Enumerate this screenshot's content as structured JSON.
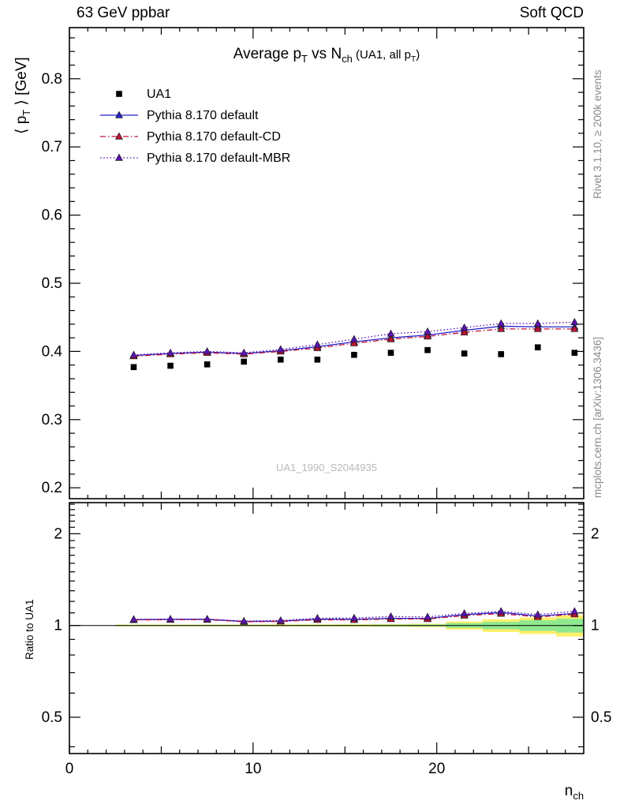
{
  "header": {
    "left": "63 GeV ppbar",
    "right": "Soft QCD"
  },
  "title": {
    "main_1": "Average p",
    "sub_1": "T",
    "main_2": " vs N",
    "sub_2": "ch",
    "paren_1": " (UA1, all p",
    "paren_sub": "T",
    "paren_2": ")"
  },
  "side_notes": {
    "right_top": "Rivet 3.1.10, ≥ 200k events",
    "right_bottom": "mcplots.cern.ch [arXiv:1306.3436]"
  },
  "watermark": "UA1_1990_S2044935",
  "axes": {
    "y_label": {
      "p1": "⟨ p",
      "sub": "T",
      "p2": " ⟩ [GeV]"
    },
    "x_label": {
      "p1": "n",
      "sub": "ch"
    },
    "ratio_label": "Ratio to UA1",
    "y_ticks": [
      0.2,
      0.3,
      0.4,
      0.5,
      0.6,
      0.7,
      0.8
    ],
    "x_ticks": [
      0,
      10,
      20
    ],
    "ratio_ticks": [
      0.5,
      1,
      2
    ],
    "ratio_minor_ticks": [
      0.4,
      0.6,
      0.7,
      0.8,
      0.9,
      1.1,
      1.2,
      1.3,
      1.4,
      1.5,
      1.6,
      1.7,
      1.8,
      1.9,
      2.1,
      2.2,
      2.3,
      2.4,
      2.5
    ],
    "x_range": [
      0,
      28
    ],
    "y_range": [
      0.184,
      0.875
    ],
    "ratio_range": [
      0.38,
      2.53
    ],
    "ratio_scale": "log"
  },
  "chart_data": {
    "type": "line",
    "title": "Average pT vs Nch (UA1, all pT)",
    "xlabel": "n_ch",
    "ylabel": "<pT> [GeV]",
    "x": [
      3.5,
      5.5,
      7.5,
      9.5,
      11.5,
      13.5,
      15.5,
      17.5,
      19.5,
      21.5,
      23.5,
      25.5,
      27.5
    ],
    "series": [
      {
        "name": "UA1",
        "role": "data",
        "marker": "square",
        "color": "#000000",
        "line": "none",
        "values": [
          0.377,
          0.379,
          0.381,
          0.385,
          0.388,
          0.388,
          0.395,
          0.398,
          0.402,
          0.397,
          0.396,
          0.406,
          0.398
        ]
      },
      {
        "name": "Pythia 8.170 default",
        "role": "mc",
        "marker": "triangle",
        "color": "#2222cc",
        "line": "solid",
        "values": [
          0.394,
          0.397,
          0.399,
          0.397,
          0.401,
          0.407,
          0.414,
          0.42,
          0.424,
          0.431,
          0.437,
          0.436,
          0.436
        ]
      },
      {
        "name": "Pythia 8.170 default-CD",
        "role": "mc",
        "marker": "triangle",
        "color": "#c01236",
        "line": "dashdot",
        "values": [
          0.393,
          0.396,
          0.398,
          0.396,
          0.4,
          0.405,
          0.412,
          0.418,
          0.422,
          0.428,
          0.433,
          0.433,
          0.433
        ]
      },
      {
        "name": "Pythia 8.170 default-MBR",
        "role": "mc",
        "marker": "triangle",
        "color": "#5a14b4",
        "line": "dotted",
        "values": [
          0.395,
          0.398,
          0.4,
          0.398,
          0.403,
          0.41,
          0.418,
          0.426,
          0.429,
          0.435,
          0.441,
          0.441,
          0.443
        ]
      }
    ],
    "ratio_reference": 1,
    "uncertainty_band": {
      "colors": {
        "outer": "#ffef6b",
        "inner": "#8fe88f"
      },
      "x": [
        3.5,
        5.5,
        7.5,
        9.5,
        11.5,
        13.5,
        15.5,
        17.5,
        19.5,
        21.5,
        23.5,
        25.5,
        27.5
      ],
      "outer_half": [
        0.007,
        0.007,
        0.007,
        0.007,
        0.008,
        0.008,
        0.009,
        0.01,
        0.012,
        0.03,
        0.048,
        0.062,
        0.08
      ],
      "inner_half": [
        0.004,
        0.004,
        0.004,
        0.004,
        0.004,
        0.005,
        0.005,
        0.006,
        0.007,
        0.018,
        0.028,
        0.04,
        0.052
      ]
    }
  }
}
